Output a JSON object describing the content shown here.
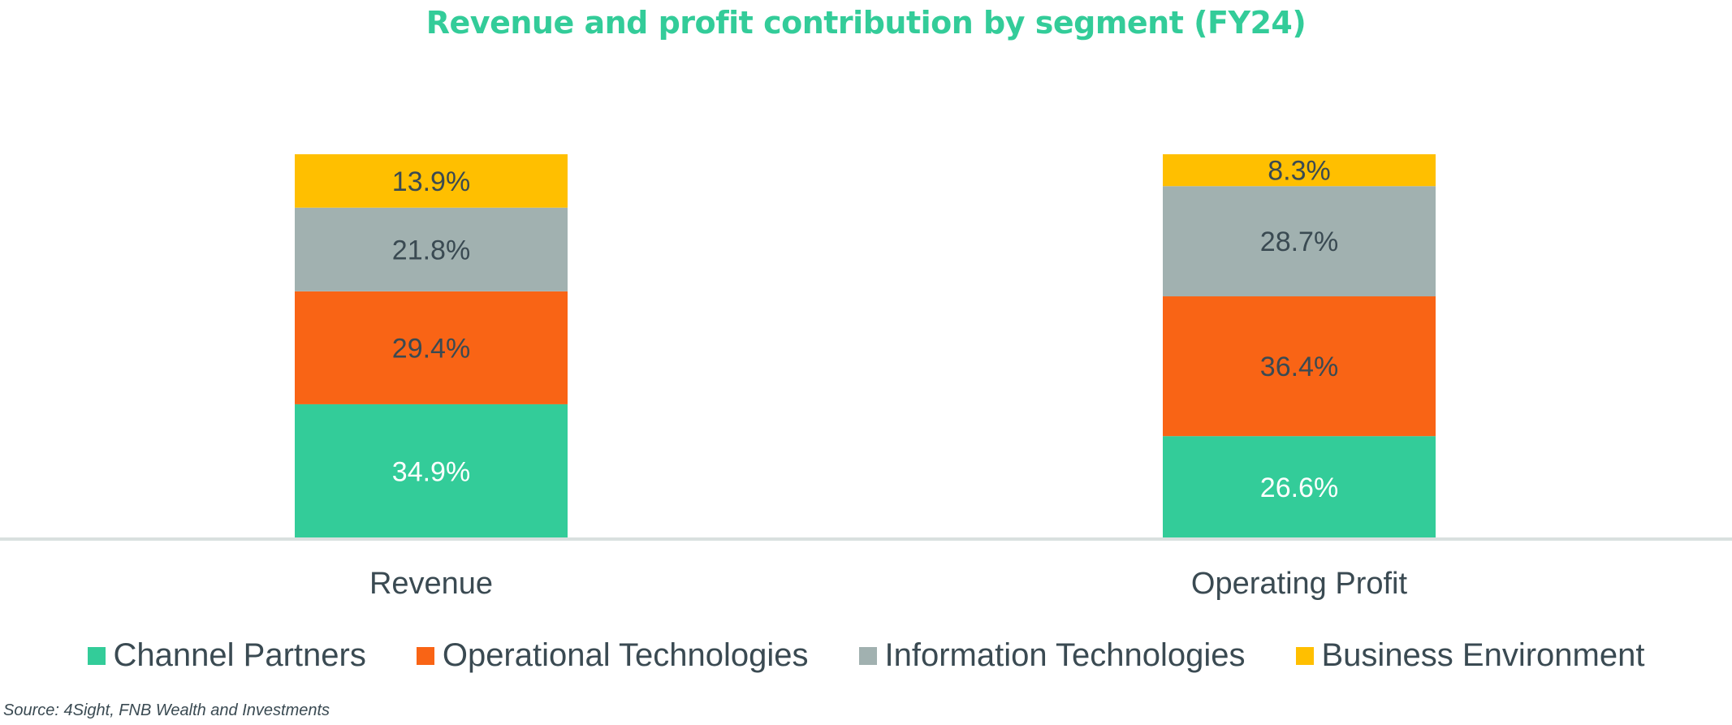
{
  "chart_data": {
    "type": "bar",
    "stacked": true,
    "title": "Revenue and profit contribution by segment (FY24)",
    "categories": [
      "Revenue",
      "Operating Profit"
    ],
    "series": [
      {
        "name": "Channel Partners",
        "color": "#33cc99",
        "values": [
          34.9,
          26.6
        ],
        "labels": [
          "34.9%",
          "26.6%"
        ],
        "label_color": "#ffffff"
      },
      {
        "name": "Operational Technologies",
        "color": "#f96415",
        "values": [
          29.4,
          36.4
        ],
        "labels": [
          "29.4%",
          "36.4%"
        ],
        "label_color": "#3a4a52"
      },
      {
        "name": "Information Technologies",
        "color": "#a1b1b0",
        "values": [
          21.8,
          28.7
        ],
        "labels": [
          "21.8%",
          "28.7%"
        ],
        "label_color": "#3a4a52"
      },
      {
        "name": "Business Environment",
        "color": "#ffbf00",
        "values": [
          13.9,
          8.3
        ],
        "labels": [
          "13.9%",
          "8.3%"
        ],
        "label_color": "#3a4a52"
      }
    ],
    "ylim": [
      0,
      100
    ],
    "grid": false,
    "legend_position": "bottom"
  },
  "source": "Source: 4Sight, FNB Wealth and Investments"
}
